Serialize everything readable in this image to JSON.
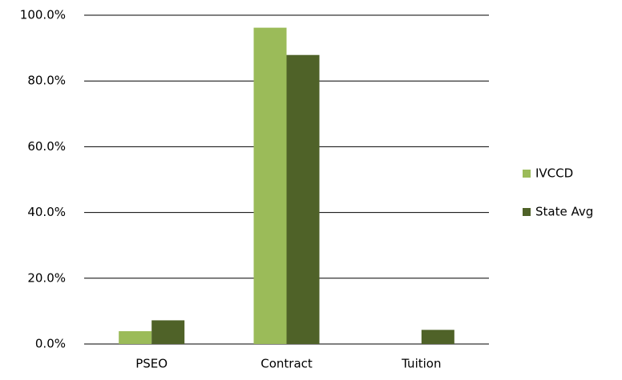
{
  "chart_data": {
    "type": "bar",
    "categories": [
      "PSEO",
      "Contract",
      "Tuition"
    ],
    "series": [
      {
        "name": "IVCCD",
        "color": "#9bbb59",
        "values": [
          3.9,
          96.2,
          0
        ]
      },
      {
        "name": "State Avg",
        "color": "#4f6228",
        "values": [
          7.2,
          87.9,
          4.3
        ]
      }
    ],
    "ylim": [
      0,
      100
    ],
    "yticks": [
      {
        "value": 0,
        "label": "0.0%"
      },
      {
        "value": 20,
        "label": "20.0%"
      },
      {
        "value": 40,
        "label": "40.0%"
      },
      {
        "value": 60,
        "label": "60.0%"
      },
      {
        "value": 80,
        "label": "80.0%"
      },
      {
        "value": 100,
        "label": "100.0%"
      }
    ],
    "grid": true,
    "legend": "right"
  }
}
